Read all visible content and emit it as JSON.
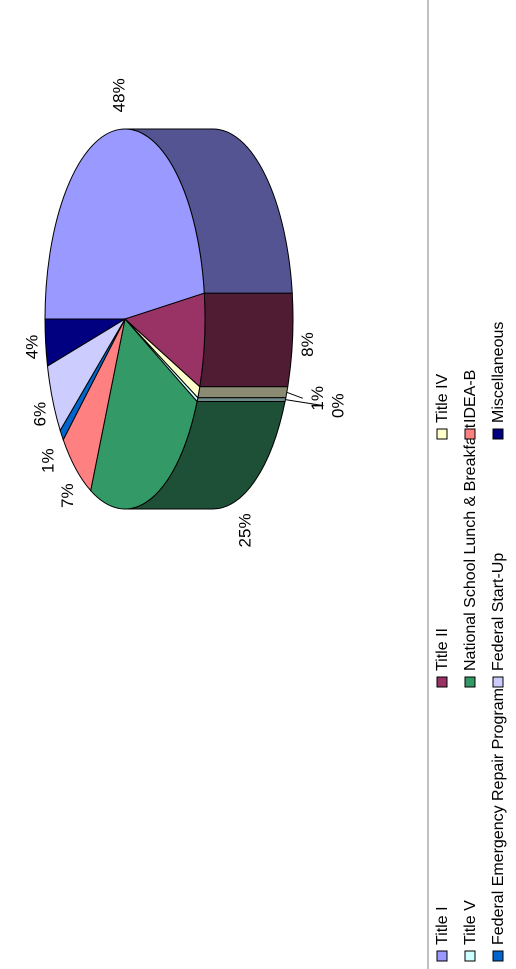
{
  "chart_data": {
    "type": "pie",
    "style": "3d-exploded",
    "orientation": "rotated-90-ccw",
    "slices": [
      {
        "name": "Title I",
        "value": 48,
        "label": "48%",
        "color": "#9999ff",
        "side": "#545493"
      },
      {
        "name": "Title II",
        "value": 8,
        "label": "8%",
        "color": "#993366",
        "side": "#4f1c34"
      },
      {
        "name": "Title IV",
        "value": 1,
        "label": "1%",
        "color": "#ffffcc",
        "side": "#8b8b73"
      },
      {
        "name": "Title V",
        "value": 0,
        "label": "0%",
        "color": "#ccffff",
        "side": "#6f8a8a"
      },
      {
        "name": "National School Lunch & Breakfast",
        "value": 25,
        "label": "25%",
        "color": "#339966",
        "side": "#1d5036"
      },
      {
        "name": "IDEA-B",
        "value": 7,
        "label": "7%",
        "color": "#ff8080",
        "side": "#8c4646"
      },
      {
        "name": "Federal Emergency Repair Program",
        "value": 1,
        "label": "1%",
        "color": "#0066cc",
        "side": "#003a74"
      },
      {
        "name": "Federal Start-Up",
        "value": 6,
        "label": "6%",
        "color": "#ccccff",
        "side": "#7070a0"
      },
      {
        "name": "Miscellaneous",
        "value": 4,
        "label": "4%",
        "color": "#000080",
        "side": "#000050"
      }
    ],
    "legend_position": "bottom"
  }
}
